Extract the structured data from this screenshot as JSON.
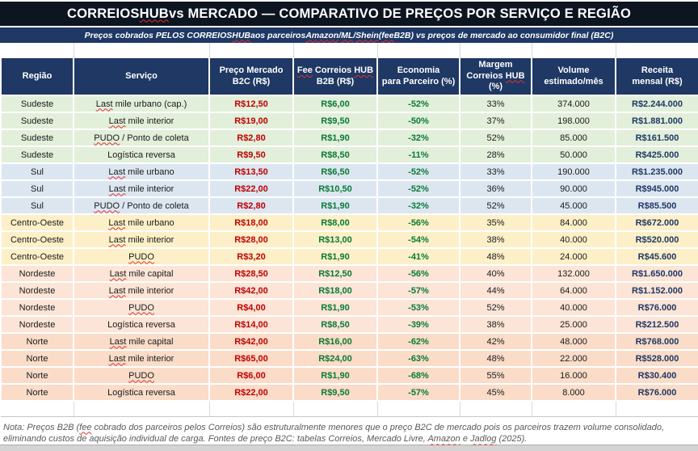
{
  "title": "CORREIOS HUB vs MERCADO — COMPARATIVO DE PREÇOS POR SERVIÇO E REGIÃO",
  "subtitle": "Preços cobrados PELOS CORREIOS HUB aos parceiros Amazon/ML/Shein (fee B2B) vs preços de mercado ao consumidor final (B2C)",
  "note": "Nota: Preços B2B (fee cobrado dos parceiros pelos Correios) são estruturalmente menores que o preço B2C de mercado pois os parceiros trazem volume consolidado, eliminando custos de aquisição individual de carga. Fontes de preço B2C: tabelas Correios, Mercado Livre, Amazon e Jadlog (2025).",
  "spellcheck_words": [
    "HUB",
    "Fee",
    "fee",
    "Last",
    "PUDO",
    "Jadlog",
    "Amazon",
    "ML",
    "Shein"
  ],
  "colors": {
    "title_bg": "#0c1520",
    "subtitle_bg": "#1f3864",
    "header_bg": "#1f3864",
    "grid_line": "#d9d9d9",
    "price_b2c_red": "#c00000",
    "fee_b2b_green": "#0a7a36",
    "economy_green": "#0a7a36",
    "revenue_navy": "#1f3864",
    "region_row_colors": {
      "Sudeste": "#e2efda",
      "Sul": "#dce6f1",
      "Centro-Oeste": "#fdf0c8",
      "Nordeste": "#fce4d6",
      "Norte": "#fadcc8"
    }
  },
  "table": {
    "column_keys": [
      "region",
      "service",
      "market_price_b2c",
      "fee_correios_hub_b2b",
      "partner_savings_pct",
      "correios_hub_margin_pct",
      "estimated_volume_month",
      "monthly_revenue"
    ],
    "columns": [
      "Região",
      "Serviço",
      "Preço Mercado\nB2C (R$)",
      "Fee Correios HUB\nB2B (R$)",
      "Economia\npara Parceiro (%)",
      "Margem\nCorreios HUB\n(%)",
      "Volume\nestimado/mês",
      "Receita\nmensal (R$)"
    ],
    "rows": [
      [
        "Sudeste",
        "Last mile urbano (cap.)",
        "R$12,50",
        "R$6,00",
        "-52%",
        "33%",
        "374.000",
        "R$2.244.000"
      ],
      [
        "Sudeste",
        "Last mile interior",
        "R$19,00",
        "R$9,50",
        "-50%",
        "37%",
        "198.000",
        "R$1.881.000"
      ],
      [
        "Sudeste",
        "PUDO / Ponto de coleta",
        "R$2,80",
        "R$1,90",
        "-32%",
        "52%",
        "85.000",
        "R$161.500"
      ],
      [
        "Sudeste",
        "Logística reversa",
        "R$9,50",
        "R$8,50",
        "-11%",
        "28%",
        "50.000",
        "R$425.000"
      ],
      [
        "Sul",
        "Last mile urbano",
        "R$13,50",
        "R$6,50",
        "-52%",
        "33%",
        "190.000",
        "R$1.235.000"
      ],
      [
        "Sul",
        "Last mile interior",
        "R$22,00",
        "R$10,50",
        "-52%",
        "36%",
        "90.000",
        "R$945.000"
      ],
      [
        "Sul",
        "PUDO / Ponto de coleta",
        "R$2,80",
        "R$1,90",
        "-32%",
        "52%",
        "45.000",
        "R$85.500"
      ],
      [
        "Centro-Oeste",
        "Last mile urbano",
        "R$18,00",
        "R$8,00",
        "-56%",
        "35%",
        "84.000",
        "R$672.000"
      ],
      [
        "Centro-Oeste",
        "Last mile interior",
        "R$28,00",
        "R$13,00",
        "-54%",
        "38%",
        "40.000",
        "R$520.000"
      ],
      [
        "Centro-Oeste",
        "PUDO",
        "R$3,20",
        "R$1,90",
        "-41%",
        "48%",
        "24.000",
        "R$45.600"
      ],
      [
        "Nordeste",
        "Last mile capital",
        "R$28,50",
        "R$12,50",
        "-56%",
        "40%",
        "132.000",
        "R$1.650.000"
      ],
      [
        "Nordeste",
        "Last mile interior",
        "R$42,00",
        "R$18,00",
        "-57%",
        "44%",
        "64.000",
        "R$1.152.000"
      ],
      [
        "Nordeste",
        "PUDO",
        "R$4,00",
        "R$1,90",
        "-53%",
        "52%",
        "40.000",
        "R$76.000"
      ],
      [
        "Nordeste",
        "Logística reversa",
        "R$14,00",
        "R$8,50",
        "-39%",
        "38%",
        "25.000",
        "R$212.500"
      ],
      [
        "Norte",
        "Last mile capital",
        "R$42,00",
        "R$16,00",
        "-62%",
        "42%",
        "48.000",
        "R$768.000"
      ],
      [
        "Norte",
        "Last mile interior",
        "R$65,00",
        "R$24,00",
        "-63%",
        "48%",
        "22.000",
        "R$528.000"
      ],
      [
        "Norte",
        "PUDO",
        "R$6,00",
        "R$1,90",
        "-68%",
        "55%",
        "16.000",
        "R$30.400"
      ],
      [
        "Norte",
        "Logística reversa",
        "R$22,00",
        "R$9,50",
        "-57%",
        "45%",
        "8.000",
        "R$76.000"
      ]
    ]
  }
}
